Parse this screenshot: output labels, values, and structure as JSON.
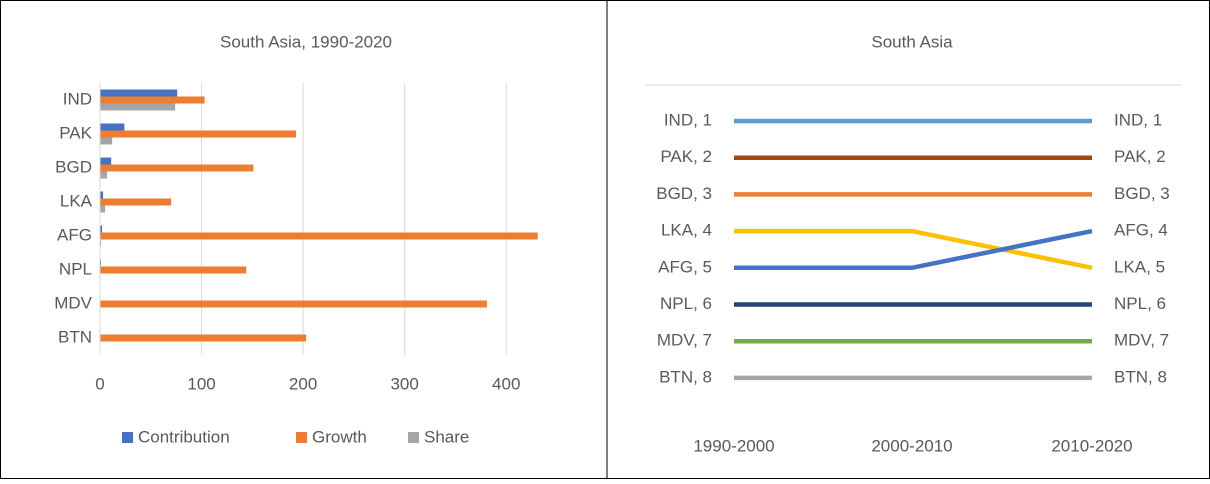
{
  "chart_data": [
    {
      "type": "bar",
      "orientation": "horizontal",
      "title": "South Asia, 1990-2020",
      "categories": [
        "IND",
        "PAK",
        "BGD",
        "LKA",
        "AFG",
        "NPL",
        "MDV",
        "BTN"
      ],
      "series": [
        {
          "name": "Contribution",
          "color": "#4472c4",
          "values": [
            76,
            24,
            11,
            3,
            2,
            1,
            0,
            0
          ]
        },
        {
          "name": "Growth",
          "color": "#ed7d31",
          "values": [
            103,
            193,
            151,
            70,
            431,
            144,
            381,
            203
          ]
        },
        {
          "name": "Share",
          "color": "#a5a5a5",
          "values": [
            74,
            12,
            7,
            5,
            1,
            0.5,
            0,
            0
          ]
        }
      ],
      "xlim": [
        0,
        450
      ],
      "xticks": [
        0,
        100,
        200,
        300,
        400
      ],
      "grid": true,
      "legend": "bottom"
    },
    {
      "type": "line",
      "title": "South Asia",
      "categories": [
        "1990-2000",
        "2000-2010",
        "2010-2020"
      ],
      "ylim": [
        0,
        9
      ],
      "y_inverted": true,
      "series": [
        {
          "color": "#5b9bd5",
          "values": [
            1,
            1,
            1
          ],
          "value_labels": [
            "IND, 1",
            null,
            "IND, 1"
          ]
        },
        {
          "color": "#9e480e",
          "values": [
            2,
            2,
            2
          ],
          "value_labels": [
            "PAK, 2",
            null,
            "PAK, 2"
          ]
        },
        {
          "color": "#ed7d31",
          "values": [
            3,
            3,
            3
          ],
          "value_labels": [
            "BGD, 3",
            null,
            "BGD, 3"
          ]
        },
        {
          "color": "#ffc000",
          "values": [
            4,
            4,
            5
          ],
          "value_labels": [
            "LKA, 4",
            null,
            "LKA, 5"
          ]
        },
        {
          "color": "#4472c4",
          "values": [
            5,
            5,
            4
          ],
          "value_labels": [
            "AFG, 5",
            null,
            "AFG, 4"
          ]
        },
        {
          "color": "#264478",
          "values": [
            6,
            6,
            6
          ],
          "value_labels": [
            "NPL, 6",
            null,
            "NPL, 6"
          ]
        },
        {
          "color": "#70ad47",
          "values": [
            7,
            7,
            7
          ],
          "value_labels": [
            "MDV, 7",
            null,
            "MDV, 7"
          ]
        },
        {
          "color": "#a5a5a5",
          "values": [
            8,
            8,
            8
          ],
          "value_labels": [
            "BTN, 8",
            null,
            "BTN, 8"
          ]
        }
      ]
    }
  ]
}
